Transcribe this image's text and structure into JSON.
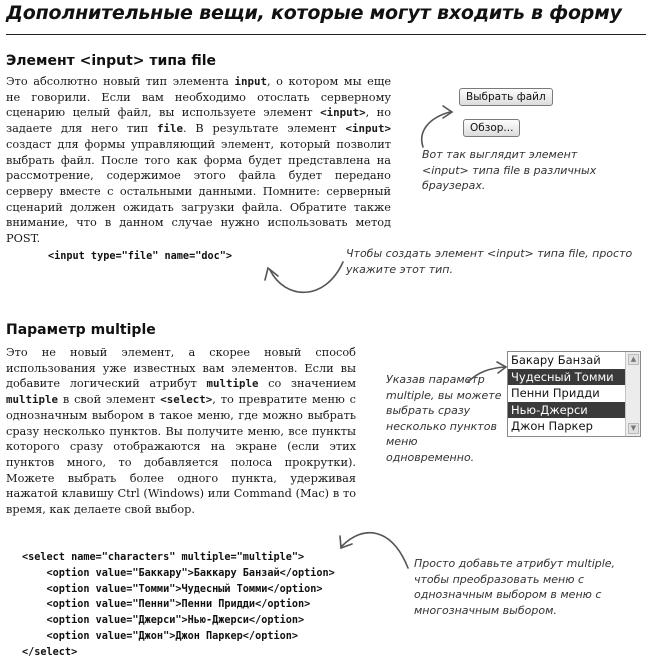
{
  "page_title": "Дополнительные вещи, которые могут входить в форму",
  "section_file": {
    "heading": "Элемент <input> типа file",
    "p1": "Это абсолютно новый тип элемента ",
    "k1": "input",
    "p2": ", о котором мы еще не говорили. Если вам необходимо отослать серверному сценарию целый файл, вы используете элемент ",
    "k2": "<input>",
    "p3": ", но задаете для него тип ",
    "k3": "file",
    "p4": ". В результате элемент ",
    "k4": "<input>",
    "p5": " создаст для формы управляющий элемент, который позволит выбрать файл. После того как форма будет представлена на рассмотрение, содержимое этого файла будет передано серверу вместе с остальными данными. Помните: серверный сценарий должен ожидать загрузки файла. Обратите также внимание, что в данном случае нужно использовать метод POST.",
    "code": "<input type=\"file\" name=\"doc\">",
    "button_chrome": "Выбрать файл",
    "button_other": "Обзор...",
    "note_browsers": "Вот так выглядит элемент <input> типа file в различных браузерах.",
    "note_create": "Чтобы создать элемент <input> типа file, просто укажите этот тип."
  },
  "section_multiple": {
    "heading": "Параметр multiple",
    "p1": "Это не новый элемент, а скорее новый способ использования уже известных вам элементов. Если вы добавите логический атрибут ",
    "k1": "multiple",
    "p2": " со значением ",
    "k2": "multiple",
    "p3": " в свой элемент ",
    "k3": "<select>",
    "p4": ", то превратите меню с однозначным выбором в такое меню, где можно выбрать сразу несколько пунктов. Вы получите меню, все пункты которого сразу отображаются на экране (если этих пунктов много, то добавляется полоса прокрутки). Можете выбрать более одного пункта, удерживая нажатой клавишу Ctrl (Windows) или Command (Mac) в то время, как делаете свой выбор.",
    "listbox_items": [
      {
        "label": "Бакару Банзай",
        "selected": false
      },
      {
        "label": "Чудесный Томми",
        "selected": true
      },
      {
        "label": "Пенни Придди",
        "selected": false
      },
      {
        "label": "Нью-Джерси",
        "selected": true
      },
      {
        "label": "Джон Паркер",
        "selected": false
      }
    ],
    "note_listbox": "Указав параметр multiple, вы можете выбрать сразу несколько пунктов меню одновременно.",
    "code_lines": [
      "<select name=\"characters\" multiple=\"multiple\">",
      "    <option value=\"Баккару\">Баккару Банзай</option>",
      "    <option value=\"Томми\">Чудесный Томми</option>",
      "    <option value=\"Пенни\">Пенни Придди</option>",
      "    <option value=\"Джерси\">Нью-Джерси</option>",
      "    <option value=\"Джон\">Джон Паркер</option>",
      "</select>"
    ],
    "note_code": "Просто добавьте атрибут multiple, чтобы преобразовать меню с однозначным выбором в меню с многозначным выбором."
  }
}
